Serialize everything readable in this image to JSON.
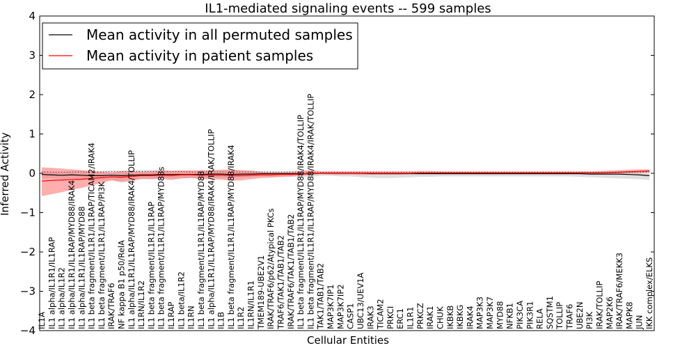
{
  "chart_data": {
    "type": "line",
    "title": "IL1-mediated signaling events -- 599 samples",
    "xlabel": "Cellular Entities",
    "ylabel": "Inferred Activity",
    "ylim": [
      -4,
      4
    ],
    "yticks": [
      -4,
      -3,
      -2,
      -1,
      0,
      1,
      2,
      3,
      4
    ],
    "categories": [
      "IL1A",
      "IL1 alpha/IL1R1/IL1RAP",
      "IL1 alpha/IL1R2",
      "IL1 alpha/IL1R1/IL1RAP/MYD88/IRAK4",
      "IL1 alpha/IL1R1/IL1RAP/MYD88",
      "IL1 beta fragment/IL1R1/IL1RAP/TICAM2/IRAK4",
      "IL1 beta fragment/IL1R1/IL1RAP/PI3K",
      "IRAK/TRAF6",
      "NF kappa B1 p50/RelA",
      "IL1 alpha/IL1R1/IL1RAP/MYD88/IRAK4/TOLLIP",
      "IL1RN/IL1R2",
      "IL1 beta fragment/IL1R1/IL1RAP",
      "IL1 beta fragment/IL1R1/IL1RAP/MYD88s",
      "IL1RAP",
      "IL1 beta/IL1R2",
      "IL1RN",
      "IL1 beta fragment/IL1R1/IL1RAP/MYD88",
      "IL1 alpha/IL1R1/IL1RAP/MYD88/IRAK4/IRAK/TOLLIP",
      "IL1B",
      "IL1 beta fragment/IL1R1/IL1RAP/MYD88/IRAK4",
      "IL1R2",
      "IL1RN/IL1R1",
      "TMEM189-UBE2V1",
      "IRAK/TRAF6/p62/Atypical PKCs",
      "TRAF6/TAK1/TAB1/TAB2",
      "IRAK/TRAF6/TAK1/TAB1/TAB2",
      "IL1 beta fragment/IL1R1/IL1RAP/MYD88/IRAK4/TOLLIP",
      "IL1 beta fragment/IL1R1/IL1RAP/MYD88/IRAK4/IRAK/TOLLIP",
      "TAK1/TAB1/TAB2",
      "MAP3K7IP1",
      "MAP3K7IP2",
      "CASP1",
      "UBC13/UEV1A",
      "IRAK3",
      "TICAM2",
      "PRKCI",
      "ERC1",
      "IL1R1",
      "PRKCZ",
      "IRAK1",
      "CHUK",
      "IKBKB",
      "IKBKG",
      "IRAK4",
      "MAP3K3",
      "MAP3K7",
      "MYD88",
      "NFKB1",
      "PIK3CA",
      "PIK3R1",
      "RELA",
      "SQSTM1",
      "TOLLIP",
      "TRAF6",
      "UBE2N",
      "PI3K",
      "IRAK/TOLLIP",
      "MAP2K6",
      "IRAK/TRAF6/MEKK3",
      "MAPK8",
      "JUN",
      "IKK complex/ELKS"
    ],
    "series": [
      {
        "name": "Mean activity in all permuted samples",
        "color": "#000000",
        "values": [
          -0.03,
          -0.04,
          -0.05,
          -0.04,
          -0.05,
          -0.06,
          -0.06,
          -0.05,
          -0.06,
          -0.05,
          -0.04,
          -0.04,
          -0.03,
          -0.03,
          -0.03,
          -0.03,
          -0.03,
          -0.02,
          -0.02,
          -0.03,
          -0.02,
          -0.02,
          -0.01,
          -0.01,
          -0.01,
          -0.01,
          -0.01,
          -0.01,
          0,
          0,
          0,
          0,
          0,
          -0.01,
          -0.01,
          -0.01,
          -0.01,
          -0.01,
          -0.01,
          -0.01,
          -0.01,
          -0.01,
          -0.01,
          -0.01,
          -0.01,
          -0.01,
          -0.01,
          -0.01,
          -0.01,
          -0.01,
          -0.01,
          -0.01,
          -0.01,
          -0.01,
          -0.01,
          -0.02,
          -0.02,
          -0.02,
          -0.02,
          -0.03,
          -0.04,
          -0.06
        ],
        "band_low": [
          -0.12,
          -0.13,
          -0.14,
          -0.14,
          -0.16,
          -0.17,
          -0.18,
          -0.17,
          -0.19,
          -0.18,
          -0.15,
          -0.14,
          -0.13,
          -0.13,
          -0.13,
          -0.12,
          -0.12,
          -0.12,
          -0.12,
          -0.12,
          -0.11,
          -0.1,
          -0.09,
          -0.09,
          -0.09,
          -0.09,
          -0.09,
          -0.09,
          -0.06,
          -0.06,
          -0.08,
          -0.08,
          -0.1,
          -0.11,
          -0.12,
          -0.12,
          -0.11,
          -0.1,
          -0.09,
          -0.09,
          -0.08,
          -0.08,
          -0.08,
          -0.08,
          -0.08,
          -0.08,
          -0.08,
          -0.08,
          -0.08,
          -0.08,
          -0.08,
          -0.08,
          -0.08,
          -0.08,
          -0.09,
          -0.1,
          -0.11,
          -0.12,
          -0.13,
          -0.14,
          -0.15,
          -0.17
        ],
        "band_high": [
          0.06,
          0.05,
          0.04,
          0.06,
          0.06,
          0.05,
          0.06,
          0.07,
          0.07,
          0.08,
          0.08,
          0.08,
          0.08,
          0.07,
          0.07,
          0.06,
          0.06,
          0.06,
          0.06,
          0.06,
          0.06,
          0.06,
          0.05,
          0.05,
          0.05,
          0.05,
          0.05,
          0.04,
          0.04,
          0.04,
          0.04,
          0.04,
          0.04,
          0.04,
          0.04,
          0.04,
          0.04,
          0.04,
          0.04,
          0.04,
          0.04,
          0.04,
          0.04,
          0.04,
          0.04,
          0.04,
          0.04,
          0.04,
          0.04,
          0.04,
          0.04,
          0.04,
          0.04,
          0.04,
          0.04,
          0.04,
          0.04,
          0.04,
          0.05,
          0.05,
          0.05,
          0.06
        ]
      },
      {
        "name": "Mean activity in patient samples",
        "color": "#ff0000",
        "values": [
          -0.2,
          -0.18,
          -0.17,
          -0.16,
          -0.15,
          -0.13,
          -0.11,
          -0.09,
          -0.1,
          -0.08,
          -0.06,
          -0.06,
          -0.05,
          -0.06,
          -0.04,
          -0.04,
          -0.05,
          -0.05,
          -0.05,
          -0.06,
          -0.06,
          -0.05,
          -0.04,
          -0.04,
          -0.03,
          -0.03,
          -0.02,
          -0.01,
          0,
          0,
          0,
          0,
          0,
          0,
          0,
          0,
          0,
          0,
          0.01,
          0.01,
          0.01,
          0.01,
          0.01,
          0.01,
          0.01,
          0.01,
          0.01,
          0.01,
          0.01,
          0.01,
          0.01,
          0.01,
          0.01,
          0.01,
          0.01,
          0.01,
          0.01,
          0.02,
          0.03,
          0.04,
          0.05,
          0.06
        ],
        "band_low": [
          -0.58,
          -0.53,
          -0.48,
          -0.42,
          -0.37,
          -0.31,
          -0.25,
          -0.18,
          -0.23,
          -0.19,
          -0.14,
          -0.15,
          -0.14,
          -0.17,
          -0.13,
          -0.12,
          -0.15,
          -0.15,
          -0.16,
          -0.19,
          -0.18,
          -0.15,
          -0.12,
          -0.11,
          -0.09,
          -0.08,
          -0.06,
          -0.04,
          -0.02,
          -0.03,
          -0.03,
          -0.03,
          -0.04,
          -0.03,
          -0.03,
          -0.03,
          -0.03,
          -0.02,
          -0.02,
          -0.02,
          -0.02,
          -0.02,
          -0.02,
          -0.02,
          -0.02,
          -0.02,
          -0.02,
          -0.02,
          -0.02,
          -0.02,
          -0.02,
          -0.02,
          -0.02,
          -0.02,
          -0.02,
          -0.02,
          -0.02,
          -0.01,
          -0.01,
          0,
          0.01,
          0.02
        ],
        "band_high": [
          0.15,
          0.14,
          0.12,
          0.1,
          0.08,
          0.06,
          0.04,
          0.02,
          0.05,
          0.05,
          0.04,
          0.05,
          0.07,
          0.06,
          0.07,
          0.07,
          0.08,
          0.08,
          0.09,
          0.1,
          0.08,
          0.07,
          0.04,
          0.03,
          0.03,
          0.04,
          0.06,
          0.08,
          0.05,
          0.05,
          0.05,
          0.05,
          0.05,
          0.05,
          0.05,
          0.05,
          0.05,
          0.05,
          0.06,
          0.06,
          0.05,
          0.05,
          0.05,
          0.05,
          0.05,
          0.05,
          0.05,
          0.05,
          0.05,
          0.05,
          0.05,
          0.05,
          0.05,
          0.05,
          0.05,
          0.05,
          0.06,
          0.07,
          0.08,
          0.09,
          0.1,
          0.1
        ]
      }
    ],
    "legend_position": "top-left",
    "grid": false
  }
}
